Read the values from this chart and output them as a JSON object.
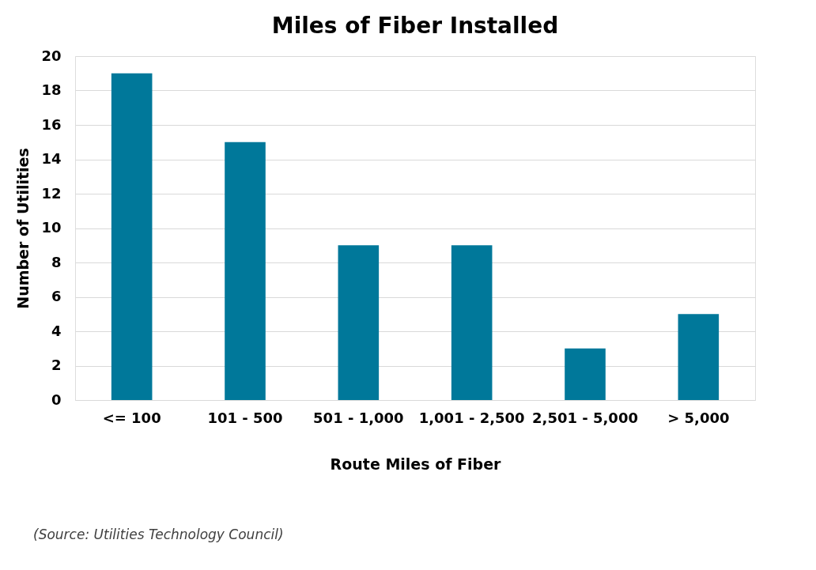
{
  "chart_data": {
    "type": "bar",
    "title": "Miles of Fiber Installed",
    "xlabel": "Route Miles of Fiber",
    "ylabel": "Number of Utilities",
    "categories": [
      "<= 100",
      "101 - 500",
      "501 - 1,000",
      "1,001 - 2,500",
      "2,501 - 5,000",
      "> 5,000"
    ],
    "values": [
      19,
      15,
      9,
      9,
      3,
      5
    ],
    "color": "#00789a",
    "ylim": [
      0,
      20
    ],
    "yticks": [
      0,
      2,
      4,
      6,
      8,
      10,
      12,
      14,
      16,
      18,
      20
    ],
    "grid": "y",
    "annotations": [
      "(Source: Utilities Technology Council)"
    ]
  }
}
